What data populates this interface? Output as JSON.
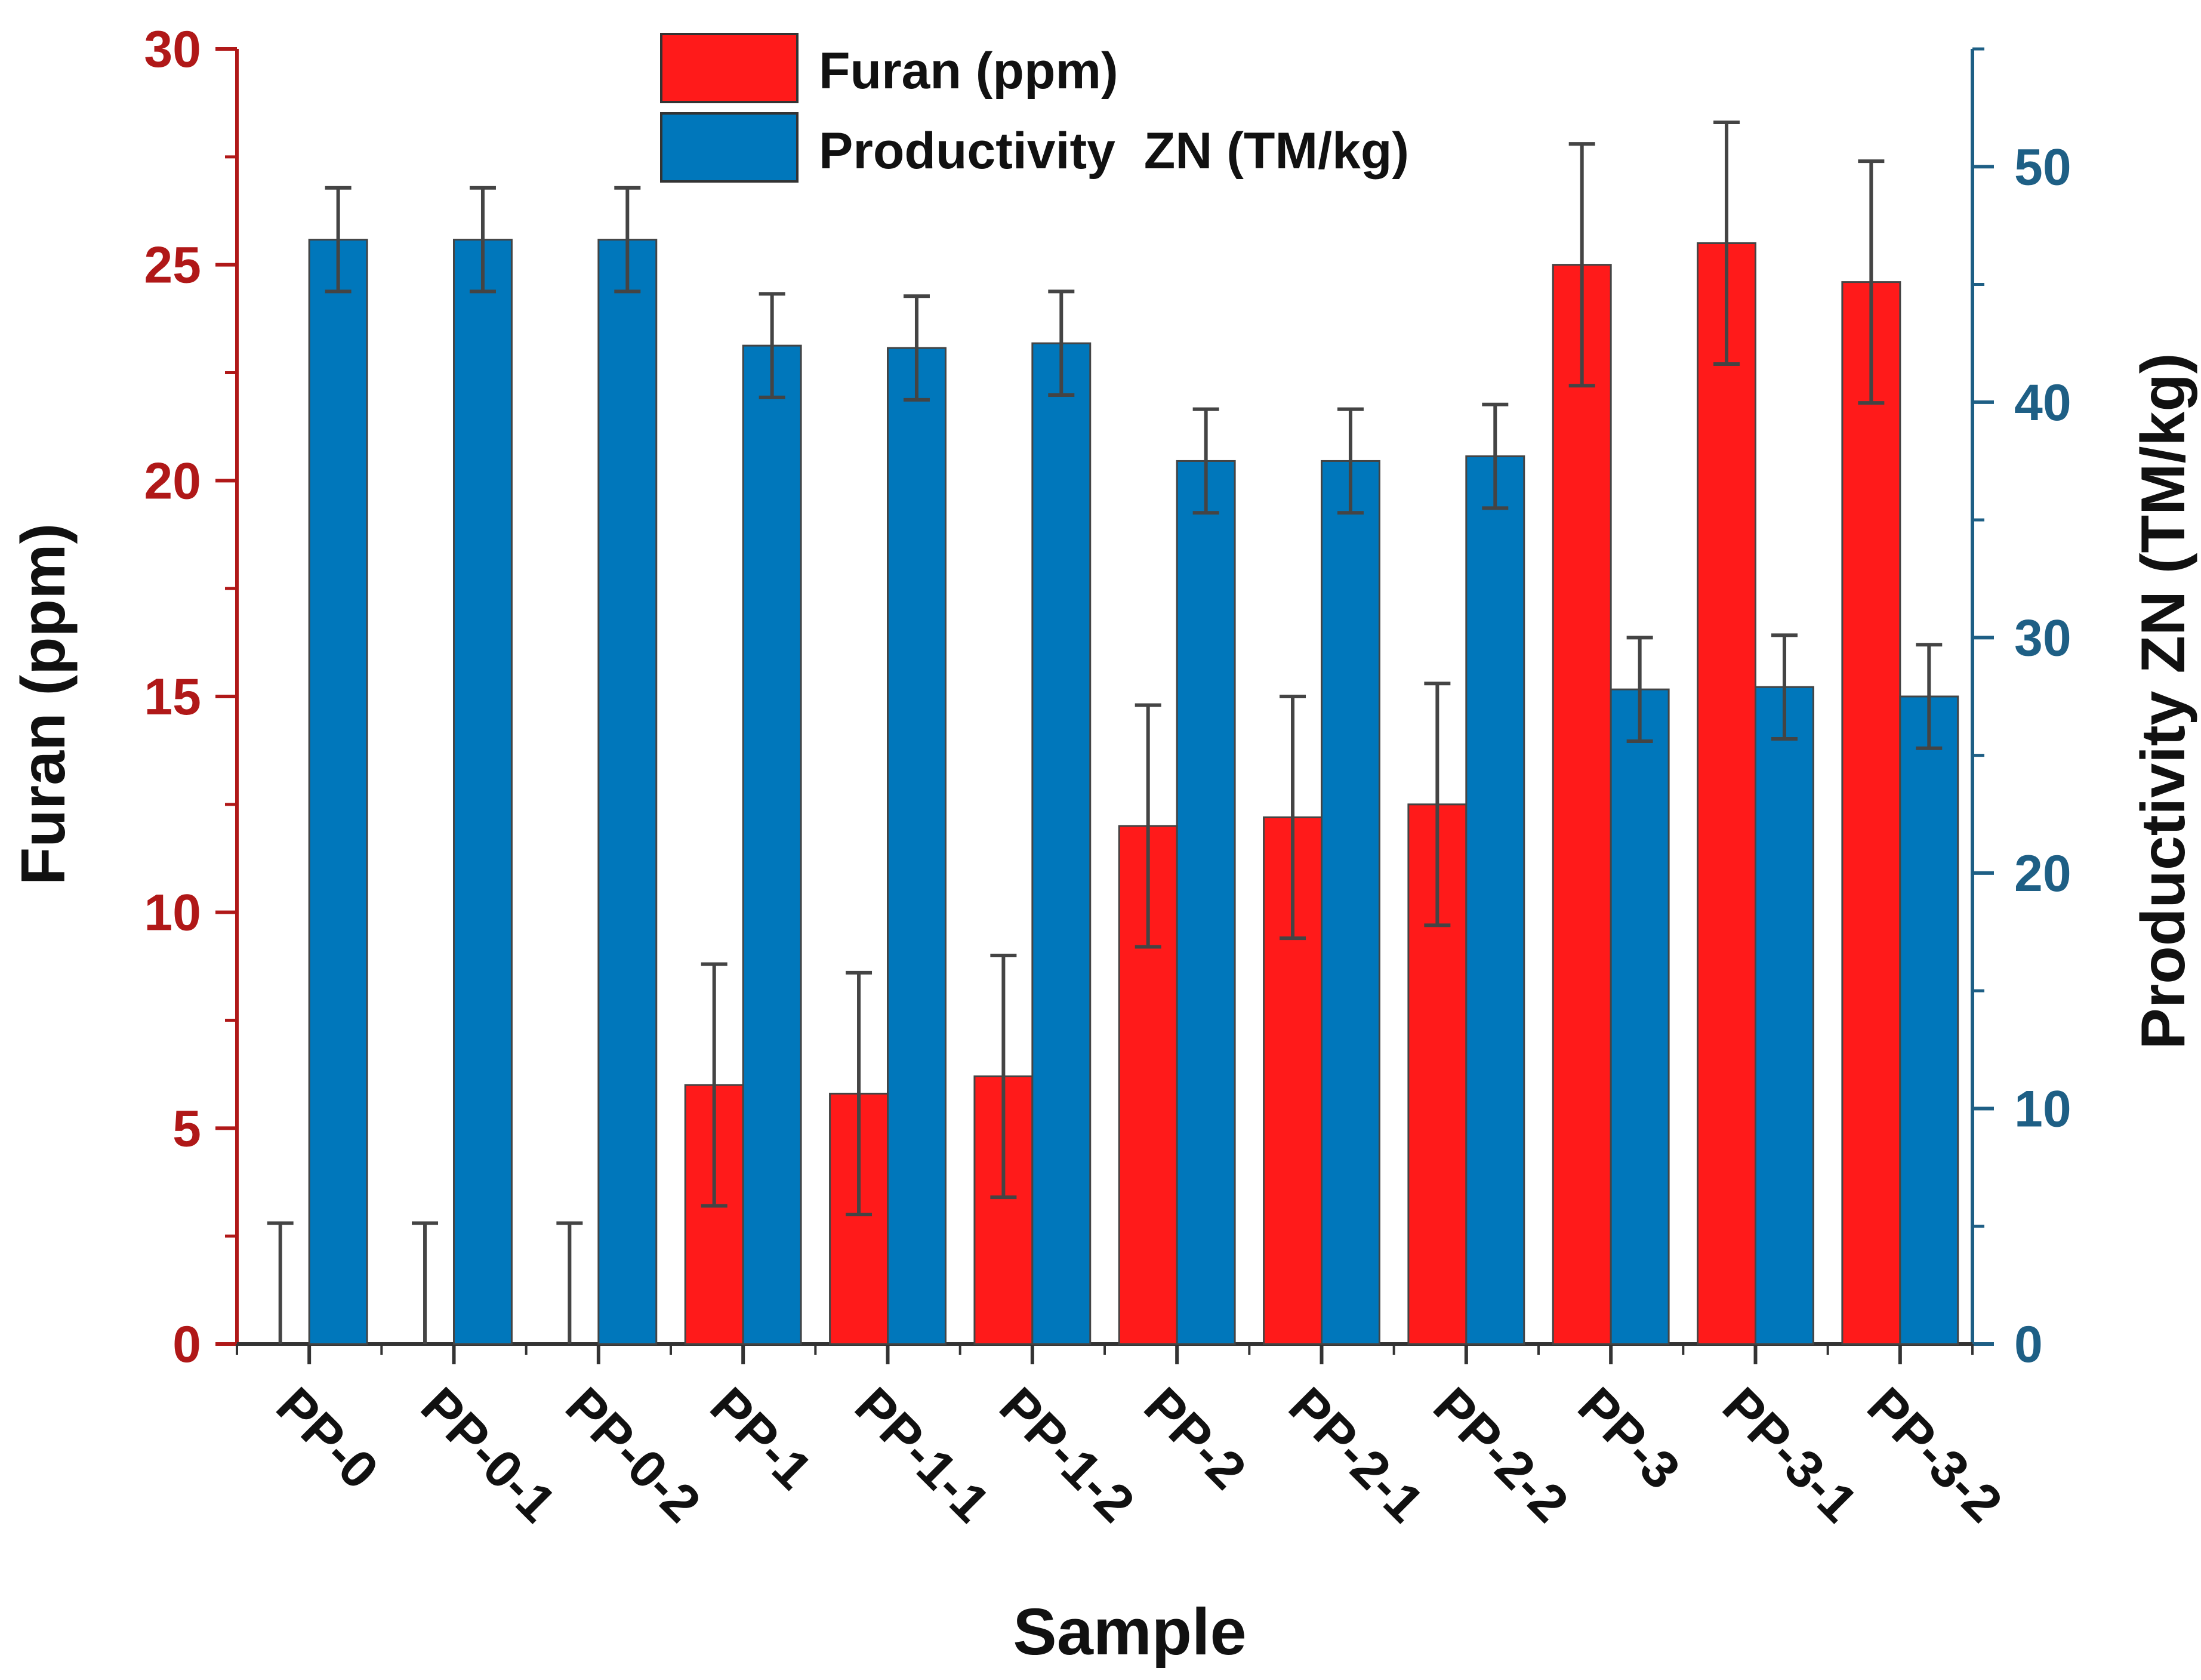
{
  "chart_data": {
    "type": "bar",
    "xlabel": "Sample",
    "categories": [
      "PP-0",
      "PP-0-1",
      "PP-0-2",
      "PP-1",
      "PP-1-1",
      "PP-1-2",
      "PP-2",
      "PP-2-1",
      "PP-2-2",
      "PP-3",
      "PP-3-1",
      "PP-3-2"
    ],
    "left_axis": {
      "label": "Furan (ppm)",
      "ylim": [
        0,
        30
      ],
      "ticks": [
        0,
        5,
        10,
        15,
        20,
        25,
        30
      ],
      "tick_labels": [
        "0",
        "5",
        "10",
        "15",
        "20",
        "25",
        "30"
      ],
      "color": "#b01818"
    },
    "right_axis": {
      "label": "Productivity  ZN (TM/kg)",
      "ylim": [
        0,
        55
      ],
      "ticks": [
        0,
        10,
        20,
        30,
        40,
        50
      ],
      "tick_labels": [
        "0",
        "10",
        "20",
        "30",
        "40",
        "50"
      ],
      "color": "#1e5f85"
    },
    "series": [
      {
        "name": "Furan (ppm)",
        "axis": "left",
        "color": "#ff1a1a",
        "values": [
          0,
          0,
          0,
          6.0,
          5.8,
          6.2,
          12.0,
          12.2,
          12.5,
          25.0,
          25.5,
          24.6
        ],
        "errors": [
          2.8,
          2.8,
          2.8,
          2.8,
          2.8,
          2.8,
          2.8,
          2.8,
          2.8,
          2.8,
          2.8,
          2.8
        ]
      },
      {
        "name": "Productivity  ZN (TM/kg)",
        "axis": "right",
        "color": "#0077bb",
        "values": [
          46.9,
          46.9,
          46.9,
          42.4,
          42.3,
          42.5,
          37.5,
          37.5,
          37.7,
          27.8,
          27.9,
          27.5
        ],
        "errors": [
          2.2,
          2.2,
          2.2,
          2.2,
          2.2,
          2.2,
          2.2,
          2.2,
          2.2,
          2.2,
          2.2,
          2.2
        ]
      }
    ],
    "legend": {
      "position": "top-center",
      "entries": [
        "Furan (ppm)",
        "Productivity  ZN (TM/kg)"
      ]
    }
  }
}
